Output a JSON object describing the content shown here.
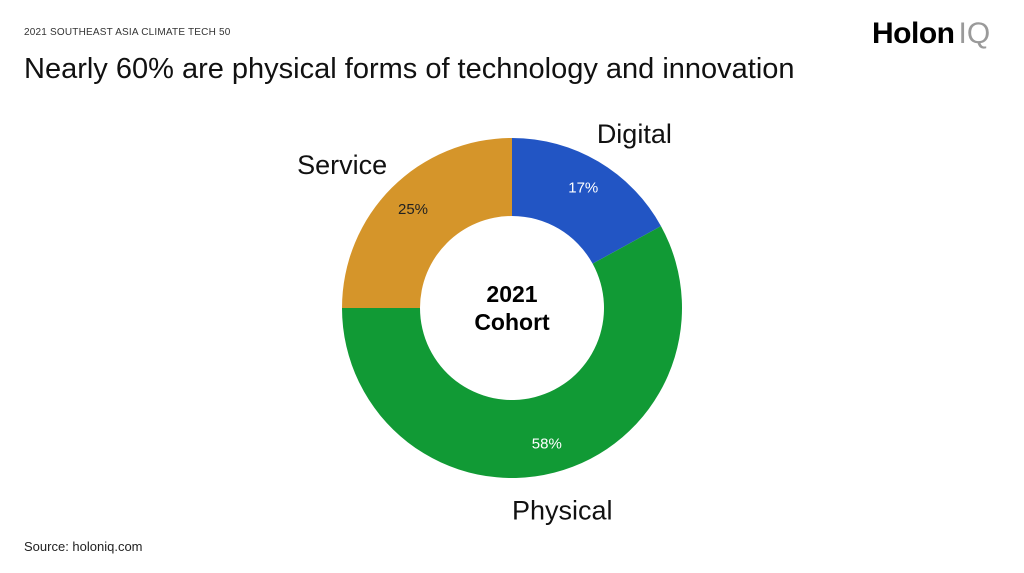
{
  "header": {
    "kicker": "2021 SOUTHEAST ASIA CLIMATE TECH 50",
    "title": "Nearly 60% are physical forms of technology and innovation"
  },
  "brand": {
    "main": "Holon",
    "sub": "IQ"
  },
  "footer": {
    "source": "Source: holoniq.com"
  },
  "chart_data": {
    "type": "pie",
    "variant": "donut",
    "center_label": [
      "2021",
      "Cohort"
    ],
    "slices": [
      {
        "label": "Digital",
        "value": 17,
        "value_label": "17%",
        "color": "#2255c4",
        "value_color": "#ffffff"
      },
      {
        "label": "Physical",
        "value": 58,
        "value_label": "58%",
        "color": "#119a35",
        "value_color": "#ffffff"
      },
      {
        "label": "Service",
        "value": 25,
        "value_label": "25%",
        "color": "#d5952a",
        "value_color": "#222222"
      }
    ]
  }
}
